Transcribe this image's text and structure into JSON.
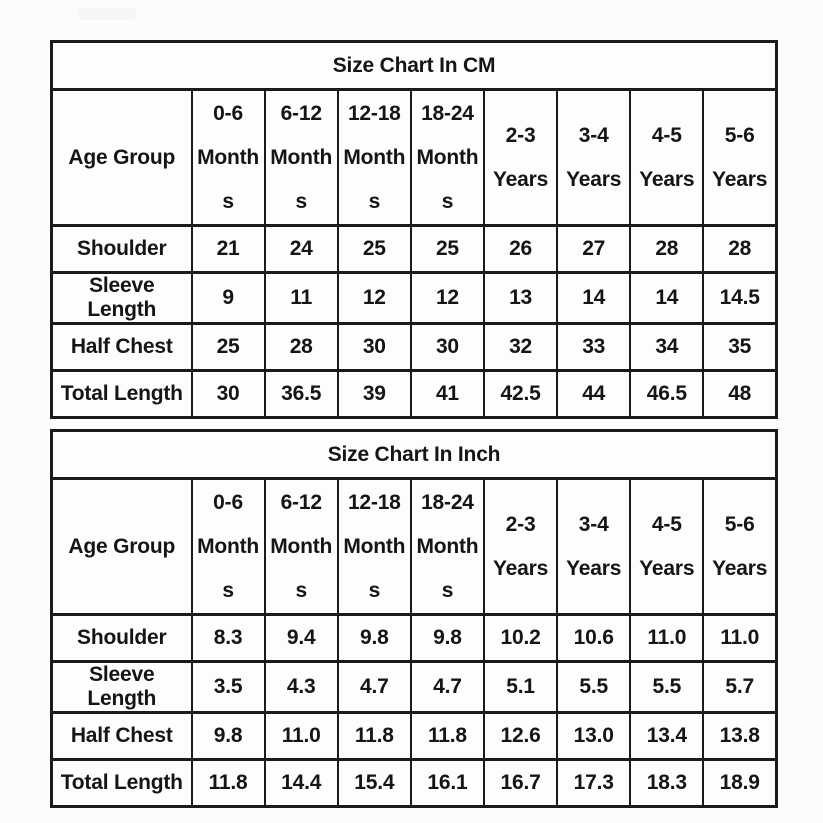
{
  "colors": {
    "page_background": "#fcfcfc",
    "table_background": "#fdfdfd",
    "border": "#1b1b1b",
    "text": "#151515",
    "watermark": "#f6f6f6"
  },
  "chart_data": [
    {
      "type": "table",
      "title": "Size Chart In CM",
      "corner_label": "Age Group",
      "columns": [
        "0-6\nMonth\ns",
        "6-12\nMonth\ns",
        "12-18\nMonth\ns",
        "18-24\nMonth\ns",
        "2-3\nYears",
        "3-4\nYears",
        "4-5\nYears",
        "5-6\nYears"
      ],
      "rows": [
        {
          "label": "Shoulder",
          "values": [
            "21",
            "24",
            "25",
            "25",
            "26",
            "27",
            "28",
            "28"
          ]
        },
        {
          "label": "Sleeve Length",
          "values": [
            "9",
            "11",
            "12",
            "12",
            "13",
            "14",
            "14",
            "14.5"
          ]
        },
        {
          "label": "Half Chest",
          "values": [
            "25",
            "28",
            "30",
            "30",
            "32",
            "33",
            "34",
            "35"
          ]
        },
        {
          "label": "Total Length",
          "values": [
            "30",
            "36.5",
            "39",
            "41",
            "42.5",
            "44",
            "46.5",
            "48"
          ]
        }
      ]
    },
    {
      "type": "table",
      "title": "Size Chart In Inch",
      "corner_label": "Age Group",
      "columns": [
        "0-6\nMonth\ns",
        "6-12\nMonth\ns",
        "12-18\nMonth\ns",
        "18-24\nMonth\ns",
        "2-3\nYears",
        "3-4\nYears",
        "4-5\nYears",
        "5-6\nYears"
      ],
      "rows": [
        {
          "label": "Shoulder",
          "values": [
            "8.3",
            "9.4",
            "9.8",
            "9.8",
            "10.2",
            "10.6",
            "11.0",
            "11.0"
          ]
        },
        {
          "label": "Sleeve Length",
          "values": [
            "3.5",
            "4.3",
            "4.7",
            "4.7",
            "5.1",
            "5.5",
            "5.5",
            "5.7"
          ]
        },
        {
          "label": "Half Chest",
          "values": [
            "9.8",
            "11.0",
            "11.8",
            "11.8",
            "12.6",
            "13.0",
            "13.4",
            "13.8"
          ]
        },
        {
          "label": "Total Length",
          "values": [
            "11.8",
            "14.4",
            "15.4",
            "16.1",
            "16.7",
            "17.3",
            "18.3",
            "18.9"
          ]
        }
      ]
    }
  ]
}
